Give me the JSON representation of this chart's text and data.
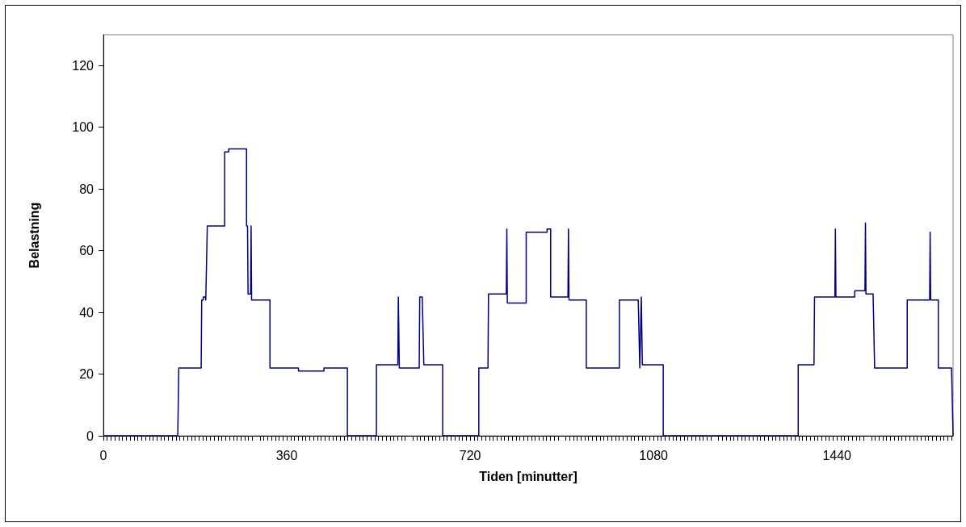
{
  "chart_data": {
    "type": "line",
    "xlabel": "Tiden [minutter]",
    "ylabel": "Belastning",
    "xlim": [
      0,
      1668
    ],
    "xticks": [
      0,
      360,
      720,
      1080,
      1440
    ],
    "ylim": [
      0,
      130
    ],
    "yticks": [
      0,
      20,
      40,
      60,
      80,
      100,
      120
    ],
    "grid": false,
    "marker": "none",
    "line_style": "solid",
    "series": [
      {
        "color": "#000080",
        "x": [
          0,
          146,
          148,
          192,
          193,
          196,
          196,
          200,
          201,
          204,
          238,
          238,
          246,
          246,
          281,
          281,
          283,
          284,
          289,
          290,
          291,
          327,
          327,
          383,
          383,
          433,
          433,
          479,
          479,
          536,
          536,
          578,
          579,
          581,
          620,
          621,
          626,
          629,
          666,
          666,
          737,
          737,
          755,
          756,
          791,
          792,
          793,
          830,
          830,
          871,
          871,
          878,
          878,
          912,
          913,
          914,
          948,
          948,
          1013,
          1013,
          1050,
          1053,
          1056,
          1058,
          1099,
          1099,
          1364,
          1364,
          1395,
          1396,
          1436,
          1437,
          1438,
          1475,
          1475,
          1495,
          1496,
          1497,
          1511,
          1514,
          1578,
          1578,
          1622,
          1623,
          1624,
          1639,
          1639,
          1665,
          1668
        ],
        "values": [
          0,
          0,
          22,
          22,
          44,
          44,
          45,
          45,
          44,
          68,
          68,
          92,
          92,
          93,
          93,
          68,
          68,
          46,
          46,
          68,
          44,
          44,
          22,
          22,
          21,
          21,
          22,
          22,
          0,
          0,
          23,
          23,
          45,
          22,
          22,
          45,
          45,
          23,
          23,
          0,
          0,
          22,
          22,
          46,
          46,
          67,
          43,
          43,
          66,
          66,
          67,
          67,
          45,
          45,
          67,
          44,
          44,
          22,
          22,
          44,
          44,
          22,
          45,
          23,
          23,
          0,
          0,
          23,
          23,
          45,
          45,
          67,
          45,
          45,
          47,
          47,
          69,
          46,
          46,
          22,
          22,
          44,
          44,
          66,
          44,
          44,
          22,
          22,
          0
        ]
      }
    ]
  }
}
